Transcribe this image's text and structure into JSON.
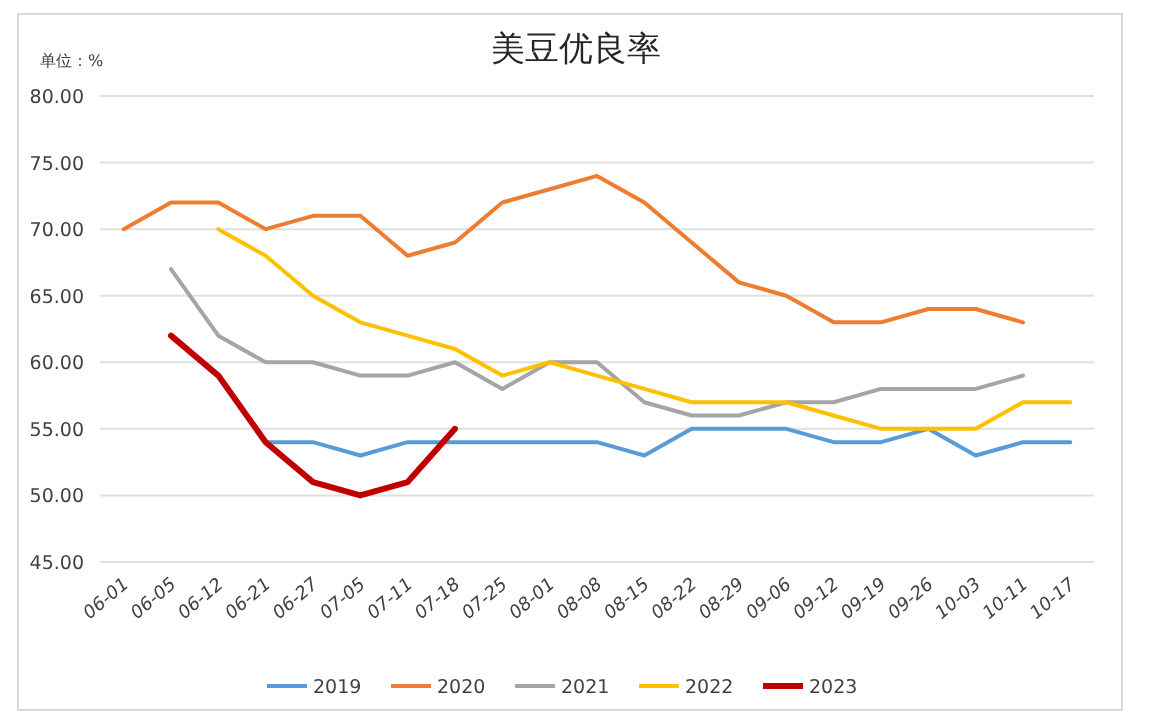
{
  "chart_data": {
    "type": "line",
    "title": "美豆优良率",
    "ylabel": "单位：%",
    "categories": [
      "06-01",
      "06-05",
      "06-12",
      "06-21",
      "06-27",
      "07-05",
      "07-11",
      "07-18",
      "07-25",
      "08-01",
      "08-08",
      "08-15",
      "08-22",
      "08-29",
      "09-06",
      "09-12",
      "09-19",
      "09-26",
      "10-03",
      "10-11",
      "10-17"
    ],
    "ylim": [
      45,
      80
    ],
    "yticks": [
      {
        "value": 45,
        "label": "45.00"
      },
      {
        "value": 50,
        "label": "50.00"
      },
      {
        "value": 55,
        "label": "55.00"
      },
      {
        "value": 60,
        "label": "60.00"
      },
      {
        "value": 65,
        "label": "65.00"
      },
      {
        "value": 70,
        "label": "70.00"
      },
      {
        "value": 75,
        "label": "75.00"
      },
      {
        "value": 80,
        "label": "80.00"
      }
    ],
    "grid": "y",
    "legend": "bottom",
    "series": [
      {
        "name": "2019",
        "color": "#5b9bd5",
        "values": [
          null,
          null,
          null,
          54,
          54,
          53,
          54,
          54,
          54,
          54,
          54,
          53,
          55,
          55,
          55,
          54,
          54,
          55,
          53,
          54,
          54
        ]
      },
      {
        "name": "2020",
        "color": "#ed7d31",
        "values": [
          70,
          72,
          72,
          70,
          71,
          71,
          68,
          69,
          72,
          73,
          74,
          72,
          69,
          66,
          65,
          63,
          63,
          64,
          64,
          63,
          null
        ]
      },
      {
        "name": "2021",
        "color": "#a5a5a5",
        "values": [
          null,
          67,
          62,
          60,
          60,
          59,
          59,
          60,
          58,
          60,
          60,
          57,
          56,
          56,
          57,
          57,
          58,
          58,
          58,
          59,
          null
        ]
      },
      {
        "name": "2022",
        "color": "#ffc000",
        "values": [
          null,
          null,
          70,
          68,
          65,
          63,
          62,
          61,
          59,
          60,
          59,
          58,
          57,
          57,
          57,
          56,
          55,
          55,
          55,
          57,
          57
        ]
      },
      {
        "name": "2023",
        "color": "#c00000",
        "values": [
          null,
          62,
          59,
          54,
          51,
          50,
          51,
          55,
          null,
          null,
          null,
          null,
          null,
          null,
          null,
          null,
          null,
          null,
          null,
          null,
          null
        ]
      }
    ]
  }
}
